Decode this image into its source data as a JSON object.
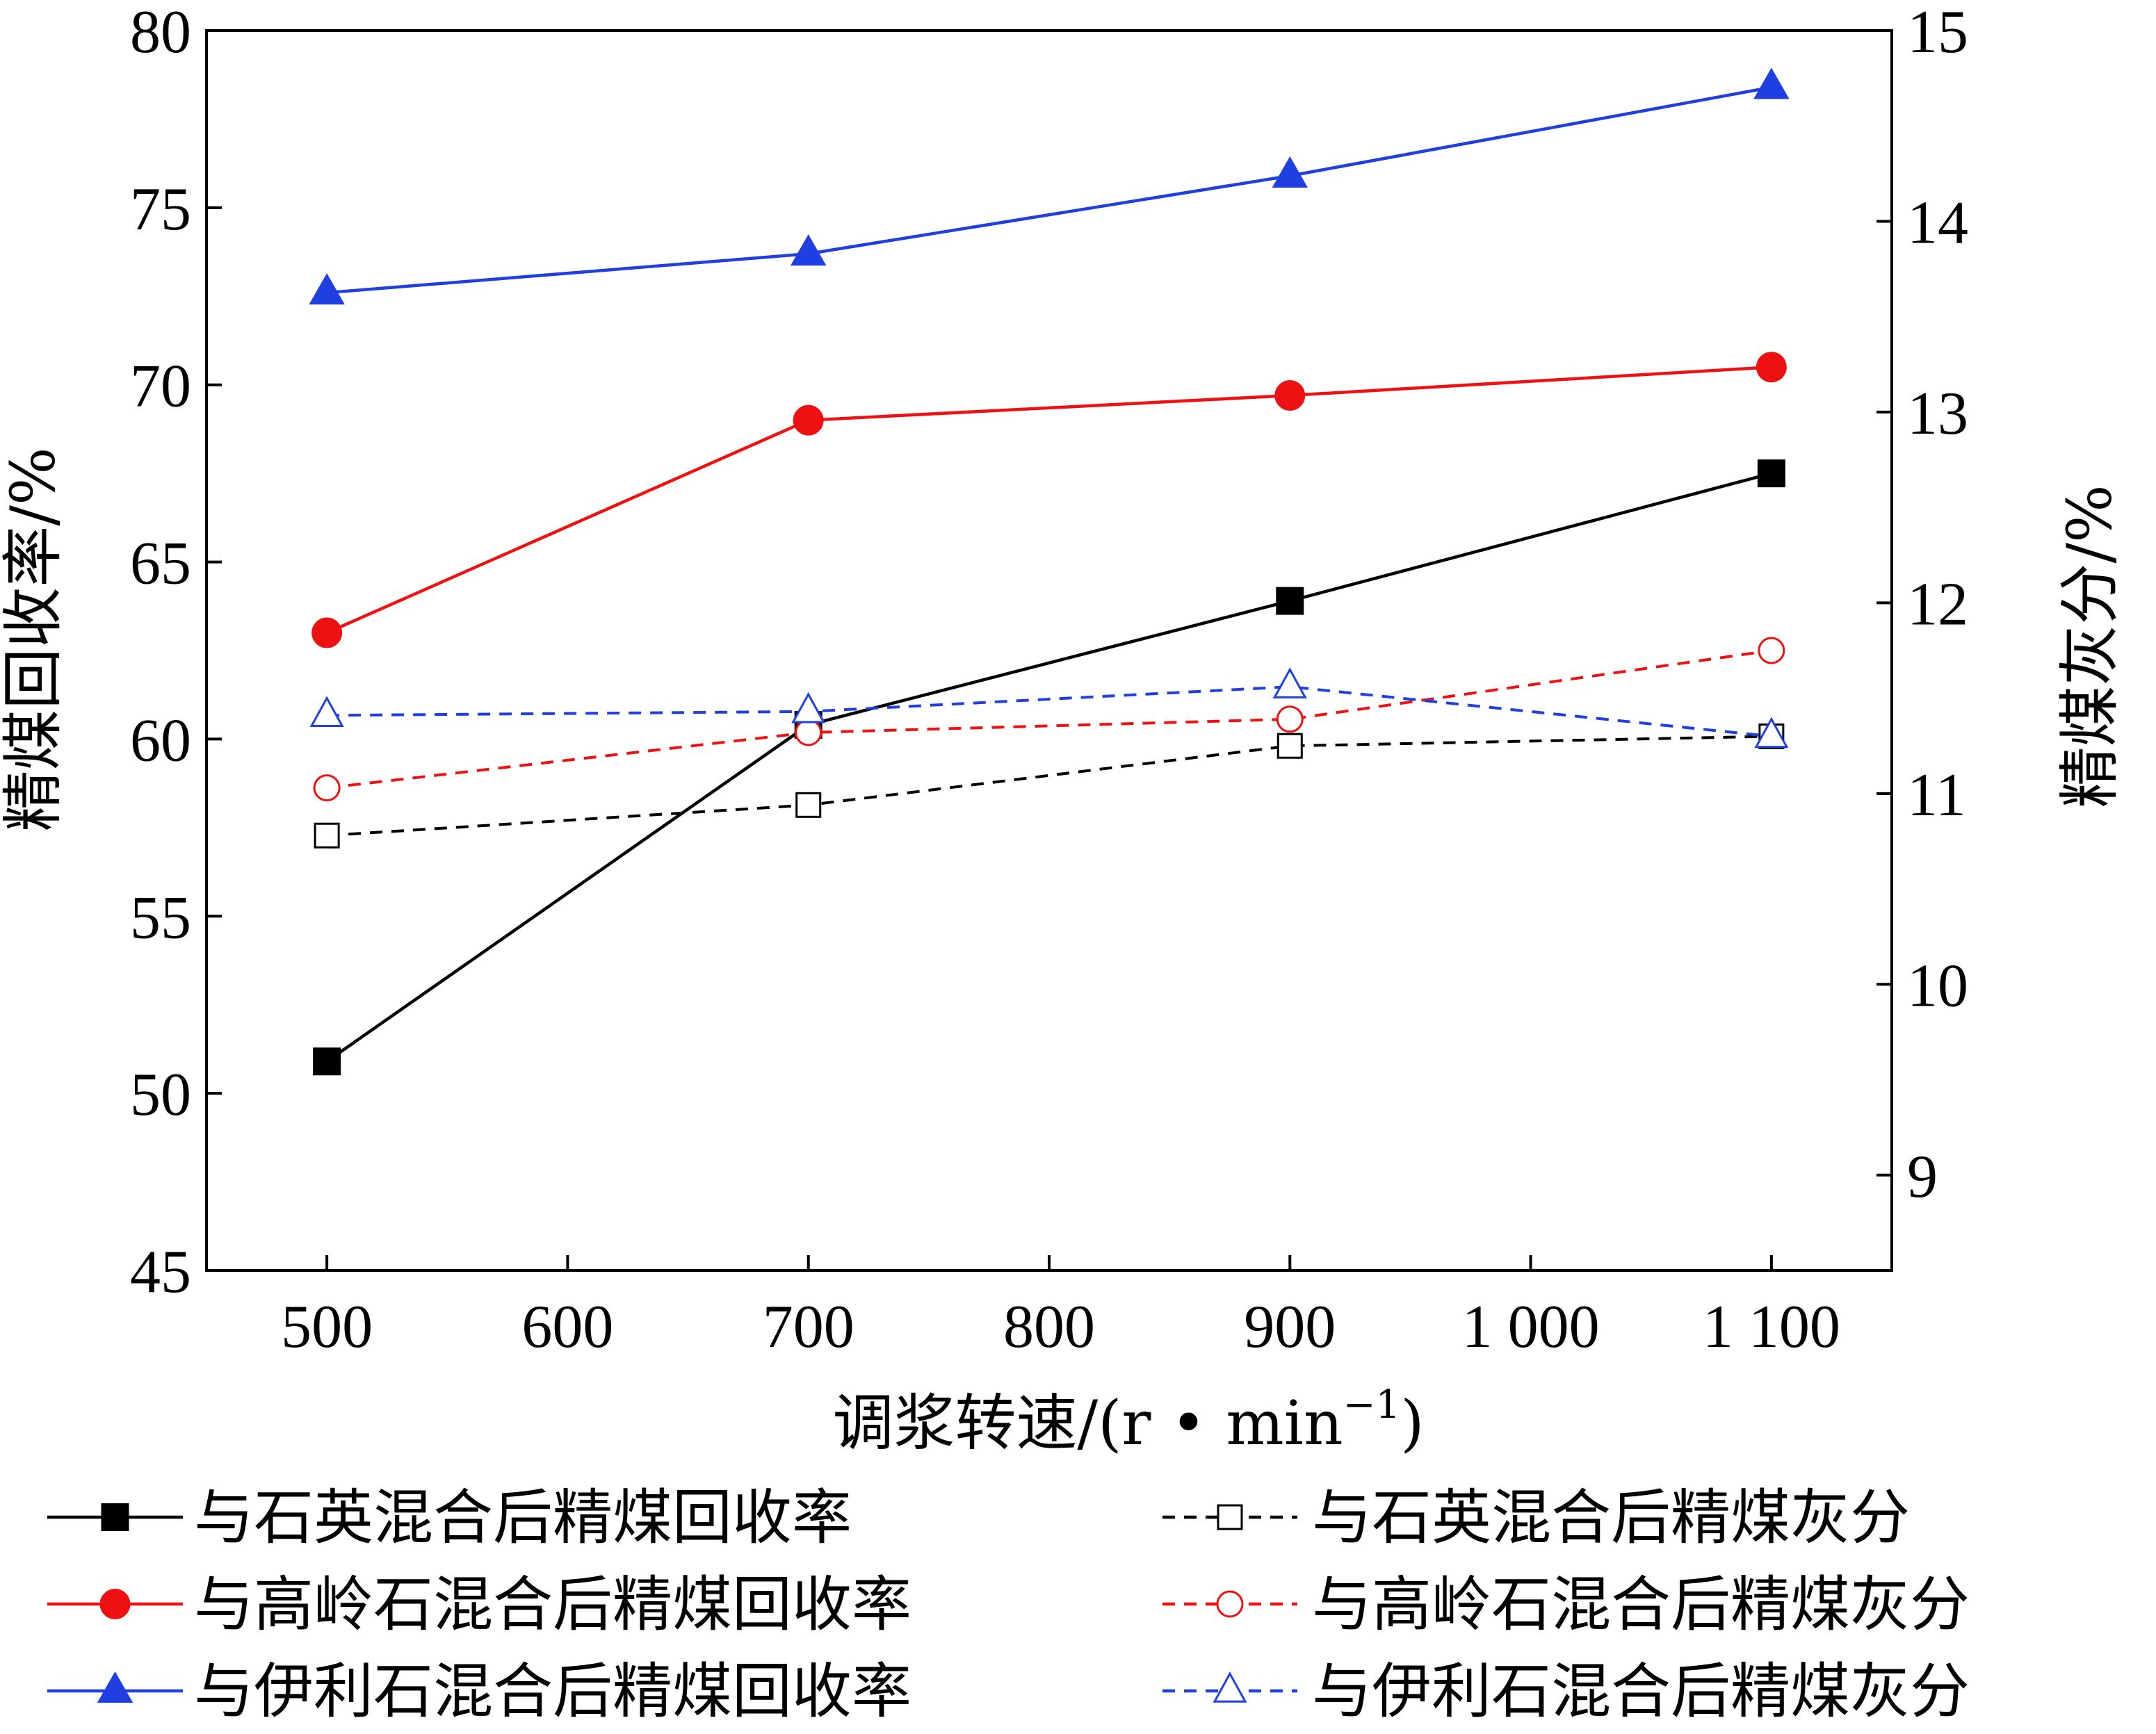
{
  "chart_data": {
    "type": "line",
    "title": "",
    "xlabel": "调浆转速/(r • min",
    "xlabel_superscript": "−1",
    "xlabel_suffix": ")",
    "ylabel_left": "精煤回收率/%",
    "ylabel_right": "精煤灰分/%",
    "x_categories": [
      500,
      700,
      900,
      1100
    ],
    "x_ticks": [
      500,
      600,
      700,
      800,
      900,
      1000,
      1100
    ],
    "x_tick_labels": [
      "500",
      "600",
      "700",
      "800",
      "900",
      "1 000",
      "1 100"
    ],
    "xlim": [
      450,
      1150
    ],
    "ylim_left": [
      45,
      80
    ],
    "yticks_left": [
      45,
      50,
      55,
      60,
      65,
      70,
      75,
      80
    ],
    "ylim_right": [
      8.5,
      15
    ],
    "yticks_right": [
      9,
      10,
      11,
      12,
      13,
      14,
      15
    ],
    "grid": false,
    "legend_position": "bottom",
    "series": [
      {
        "name": "与石英混合后精煤回收率",
        "axis": "left",
        "color": "#000000",
        "line": "solid",
        "marker": "square-filled",
        "x": [
          500,
          700,
          900,
          1100
        ],
        "values": [
          50.9,
          60.4,
          63.9,
          67.5
        ]
      },
      {
        "name": "与高岭石混合后精煤回收率",
        "axis": "left",
        "color": "#ee1111",
        "line": "solid",
        "marker": "circle-filled",
        "x": [
          500,
          700,
          900,
          1100
        ],
        "values": [
          63.0,
          69.0,
          69.7,
          70.5
        ]
      },
      {
        "name": "与伊利石混合后精煤回收率",
        "axis": "left",
        "color": "#1f3fe0",
        "line": "solid",
        "marker": "triangle-filled",
        "x": [
          500,
          700,
          900,
          1100
        ],
        "values": [
          72.6,
          73.7,
          75.9,
          78.4
        ]
      },
      {
        "name": "与石英混合后精煤灰分",
        "axis": "right",
        "color": "#000000",
        "line": "dashed",
        "marker": "square-open",
        "x": [
          500,
          700,
          900,
          1100
        ],
        "values": [
          10.78,
          10.94,
          11.25,
          11.3
        ]
      },
      {
        "name": "与高岭石混合后精煤灰分",
        "axis": "right",
        "color": "#ee1111",
        "line": "dashed",
        "marker": "circle-open",
        "x": [
          500,
          700,
          900,
          1100
        ],
        "values": [
          11.03,
          11.32,
          11.39,
          11.75
        ]
      },
      {
        "name": "与伊利石混合后精煤灰分",
        "axis": "right",
        "color": "#1f3fe0",
        "line": "dashed",
        "marker": "triangle-open",
        "x": [
          500,
          700,
          900,
          1100
        ],
        "values": [
          11.41,
          11.43,
          11.56,
          11.3
        ]
      }
    ]
  }
}
